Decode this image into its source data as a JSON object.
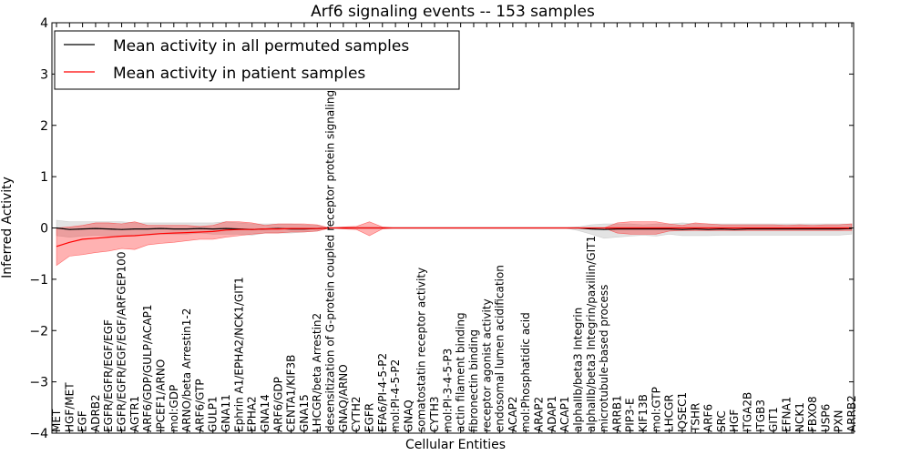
{
  "chart_data": {
    "type": "line",
    "title": "Arf6 signaling events -- 153 samples",
    "xlabel": "Cellular Entities",
    "ylabel": "Inferred Activity",
    "ylim": [
      -4,
      4
    ],
    "yticks": [
      -4,
      -3,
      -2,
      -1,
      0,
      1,
      2,
      3,
      4
    ],
    "ytick_labels": [
      "−4",
      "−3",
      "−2",
      "−1",
      "0",
      "1",
      "2",
      "3",
      "4"
    ],
    "legend": {
      "position": "top-left",
      "entries": [
        {
          "label": "Mean activity in all permuted samples",
          "color": "#000000"
        },
        {
          "label": "Mean activity in patient samples",
          "color": "#ff0000"
        }
      ]
    },
    "categories": [
      "MET",
      "HGF/MET",
      "EGF",
      "ADRB2",
      "EGFR/EGFR/EGF/EGF",
      "EGFR/EGFR/EGF/EGF/ARFGEP100",
      "AGTR1",
      "ARF6/GDP/GULP/ACAP1",
      "IPCEF1/ARNO",
      "mol:GDP",
      "ARNO/beta Arrestin1-2",
      "ARF6/GTP",
      "GULP1",
      "GNA11",
      "Ephrin A1/EPHA2/NCK1/GIT1",
      "EPHA2",
      "GNA14",
      "ARF6/GDP",
      "CENTA1/KIF3B",
      "GNA15",
      "LHCGR/beta Arrestin2",
      "desensitization of G-protein coupled receptor protein signaling pathway",
      "GNAQ/ARNO",
      "CYTH2",
      "EGFR",
      "EFA6/PI-4-5-P2",
      "mol:PI-4-5-P2",
      "GNAQ",
      "somatostatin receptor activity",
      "CYTH3",
      "mol:PI-3-4-5-P3",
      "actin filament binding",
      "fibronectin binding",
      "receptor agonist activity",
      "endosomal lumen acidification",
      "ACAP2",
      "mol:Phosphatidic acid",
      "ARAP2",
      "ADAP1",
      "ACAP1",
      "alphaIIb/beta3 Integrin",
      "alphaIIb/beta3 Integrin/paxillin/GIT1",
      "microtubule-based process",
      "ARRB1",
      "PIP3-E",
      "KIF13B",
      "mol:GTP",
      "LHCGR",
      "IQSEC1",
      "TSHR",
      "ARF6",
      "SRC",
      "HGF",
      "ITGA2B",
      "ITGB3",
      "GIT1",
      "EFNA1",
      "NCK1",
      "FBXO8",
      "USP6",
      "PXN",
      "ARRB2"
    ],
    "series": [
      {
        "name": "Mean activity in patient samples",
        "color": "#ff0000",
        "values": [
          -0.36,
          -0.28,
          -0.22,
          -0.2,
          -0.18,
          -0.16,
          -0.15,
          -0.13,
          -0.11,
          -0.1,
          -0.09,
          -0.08,
          -0.07,
          -0.04,
          -0.03,
          -0.03,
          -0.02,
          -0.02,
          -0.01,
          -0.01,
          -0.01,
          0,
          0,
          0,
          0,
          0,
          0,
          0,
          0,
          0,
          0,
          0,
          0,
          0,
          0,
          0,
          0,
          0,
          0,
          0,
          0,
          0,
          0,
          0,
          0,
          0,
          0,
          0,
          0,
          0,
          0,
          0,
          0,
          0,
          0,
          0,
          0,
          0,
          0,
          0,
          0,
          0
        ],
        "upper": [
          0.0,
          0.02,
          0.05,
          0.1,
          0.1,
          0.08,
          0.12,
          0.05,
          0.05,
          0.05,
          0.05,
          0.03,
          0.05,
          0.12,
          0.12,
          0.1,
          0.05,
          0.08,
          0.08,
          0.08,
          0.06,
          0.0,
          0.02,
          0.03,
          0.12,
          0.02,
          0,
          0,
          0,
          0,
          0,
          0,
          0,
          0,
          0,
          0,
          0,
          0,
          0,
          0,
          0,
          0,
          0,
          0.1,
          0.12,
          0.12,
          0.12,
          0.08,
          0.05,
          0.1,
          0.08,
          0.06,
          0.06,
          0.06,
          0.06,
          0.06,
          0.05,
          0.06,
          0.05,
          0.06,
          0.06,
          0.08
        ],
        "lower": [
          -0.73,
          -0.55,
          -0.52,
          -0.48,
          -0.45,
          -0.4,
          -0.42,
          -0.33,
          -0.3,
          -0.28,
          -0.25,
          -0.22,
          -0.22,
          -0.18,
          -0.15,
          -0.12,
          -0.1,
          -0.1,
          -0.08,
          -0.08,
          -0.06,
          0.0,
          -0.02,
          -0.03,
          -0.15,
          -0.02,
          0,
          0,
          0,
          0,
          0,
          0,
          0,
          0,
          0,
          0,
          0,
          0,
          0,
          0,
          0,
          0,
          0,
          -0.1,
          -0.12,
          -0.12,
          -0.12,
          -0.06,
          -0.05,
          -0.05,
          -0.05,
          -0.05,
          -0.05,
          -0.05,
          -0.05,
          -0.05,
          -0.05,
          -0.05,
          -0.05,
          -0.05,
          -0.05,
          -0.05
        ]
      },
      {
        "name": "Mean activity in all permuted samples",
        "color": "#000000",
        "values": [
          0.0,
          -0.03,
          -0.02,
          -0.01,
          -0.02,
          -0.03,
          -0.02,
          -0.02,
          -0.01,
          -0.02,
          -0.02,
          -0.01,
          -0.02,
          -0.01,
          -0.02,
          -0.03,
          -0.02,
          -0.01,
          -0.02,
          -0.02,
          -0.01,
          0,
          0,
          0,
          0,
          0,
          0,
          0,
          0,
          0,
          0,
          0,
          0,
          0,
          0,
          0,
          0,
          0,
          0,
          0,
          0,
          -0.02,
          -0.03,
          -0.02,
          -0.02,
          -0.02,
          -0.02,
          -0.02,
          -0.03,
          -0.02,
          -0.03,
          -0.02,
          -0.03,
          -0.02,
          -0.02,
          -0.02,
          -0.02,
          -0.02,
          -0.02,
          -0.02,
          -0.02,
          -0.01
        ],
        "upper": [
          0.15,
          0.12,
          0.12,
          0.12,
          0.12,
          0.12,
          0.1,
          0.1,
          0.1,
          0.1,
          0.1,
          0.1,
          0.1,
          0.12,
          0.1,
          0.08,
          0.08,
          0.08,
          0.08,
          0.06,
          0.05,
          0,
          0,
          0,
          0,
          0,
          0,
          0,
          0,
          0,
          0,
          0,
          0,
          0,
          0,
          0,
          0,
          0,
          0,
          0,
          0.02,
          0.06,
          0.08,
          0.08,
          0.08,
          0.06,
          0.08,
          0.08,
          0.1,
          0.08,
          0.08,
          0.08,
          0.08,
          0.08,
          0.08,
          0.08,
          0.08,
          0.08,
          0.08,
          0.08,
          0.08,
          0.08
        ],
        "lower": [
          -0.15,
          -0.18,
          -0.16,
          -0.14,
          -0.15,
          -0.16,
          -0.14,
          -0.14,
          -0.12,
          -0.12,
          -0.12,
          -0.1,
          -0.12,
          -0.12,
          -0.12,
          -0.14,
          -0.1,
          -0.1,
          -0.1,
          -0.08,
          -0.06,
          0,
          0,
          0,
          0,
          0,
          0,
          0,
          0,
          0,
          0,
          0,
          0,
          0,
          0,
          0,
          0,
          0,
          0,
          0,
          -0.05,
          -0.12,
          -0.2,
          -0.18,
          -0.16,
          -0.14,
          -0.16,
          -0.12,
          -0.15,
          -0.15,
          -0.15,
          -0.14,
          -0.14,
          -0.14,
          -0.14,
          -0.14,
          -0.14,
          -0.14,
          -0.14,
          -0.14,
          -0.14,
          -0.12
        ]
      }
    ],
    "grid": false
  }
}
